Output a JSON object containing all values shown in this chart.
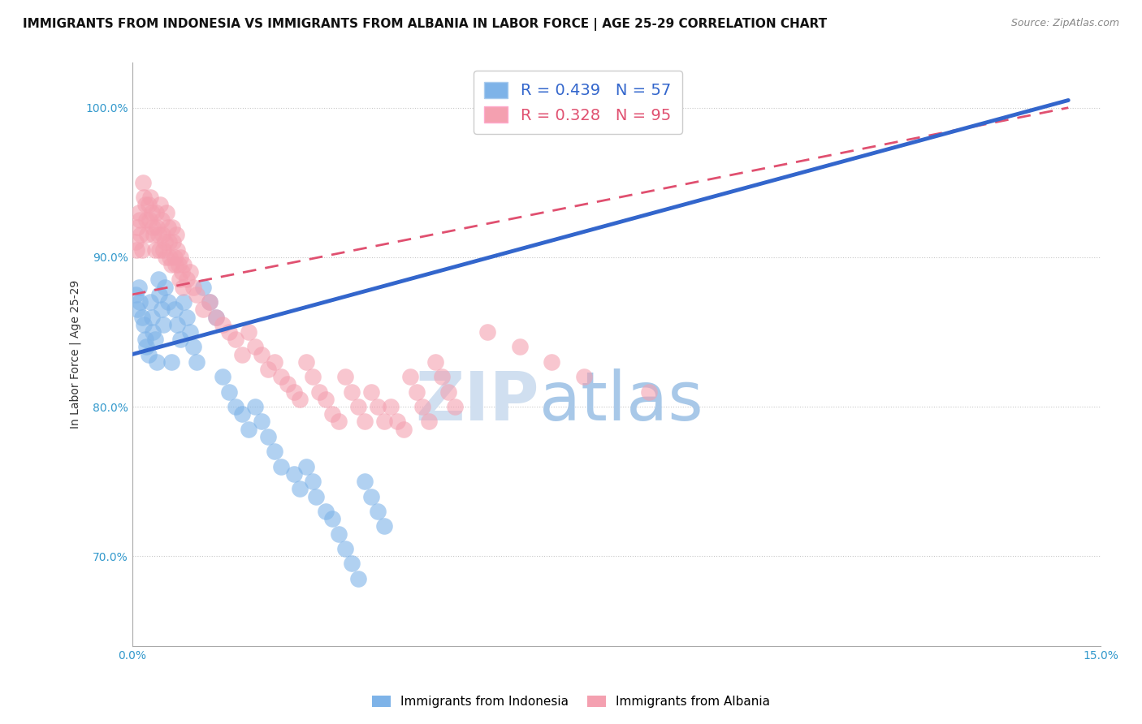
{
  "title": "IMMIGRANTS FROM INDONESIA VS IMMIGRANTS FROM ALBANIA IN LABOR FORCE | AGE 25-29 CORRELATION CHART",
  "source": "Source: ZipAtlas.com",
  "xlabel": "",
  "ylabel": "In Labor Force | Age 25-29",
  "xlim": [
    0.0,
    15.0
  ],
  "ylim": [
    64.0,
    103.0
  ],
  "xticks": [
    0.0,
    5.0,
    10.0,
    15.0
  ],
  "xticklabels": [
    "0.0%",
    "",
    "",
    "15.0%"
  ],
  "yticks": [
    70.0,
    80.0,
    90.0,
    100.0
  ],
  "yticklabels": [
    "70.0%",
    "80.0%",
    "90.0%",
    "100.0%"
  ],
  "legend_indonesia": "Immigrants from Indonesia",
  "legend_albania": "Immigrants from Albania",
  "R_indonesia": 0.439,
  "N_indonesia": 57,
  "R_albania": 0.328,
  "N_albania": 95,
  "color_indonesia": "#7EB3E8",
  "color_albania": "#F4A0B0",
  "color_trendline_indonesia": "#3366CC",
  "color_trendline_albania": "#E05070",
  "watermark_zip": "ZIP",
  "watermark_atlas": "atlas",
  "watermark_color_zip": "#C8D8F0",
  "watermark_color_atlas": "#A0C8F0",
  "background_color": "#FFFFFF",
  "title_fontsize": 11,
  "axis_label_fontsize": 10,
  "tick_fontsize": 10,
  "indonesia_x": [
    0.05,
    0.08,
    0.1,
    0.12,
    0.15,
    0.18,
    0.2,
    0.22,
    0.25,
    0.28,
    0.3,
    0.32,
    0.35,
    0.38,
    0.4,
    0.42,
    0.45,
    0.48,
    0.5,
    0.55,
    0.6,
    0.65,
    0.7,
    0.75,
    0.8,
    0.85,
    0.9,
    0.95,
    1.0,
    1.1,
    1.2,
    1.3,
    1.4,
    1.5,
    1.6,
    1.7,
    1.8,
    1.9,
    2.0,
    2.1,
    2.2,
    2.3,
    2.5,
    2.6,
    2.7,
    2.8,
    2.85,
    3.0,
    3.1,
    3.2,
    3.3,
    3.4,
    3.5,
    3.6,
    3.7,
    3.8,
    3.9
  ],
  "indonesia_y": [
    87.5,
    86.5,
    88.0,
    87.0,
    86.0,
    85.5,
    84.5,
    84.0,
    83.5,
    87.0,
    86.0,
    85.0,
    84.5,
    83.0,
    88.5,
    87.5,
    86.5,
    85.5,
    88.0,
    87.0,
    83.0,
    86.5,
    85.5,
    84.5,
    87.0,
    86.0,
    85.0,
    84.0,
    83.0,
    88.0,
    87.0,
    86.0,
    82.0,
    81.0,
    80.0,
    79.5,
    78.5,
    80.0,
    79.0,
    78.0,
    77.0,
    76.0,
    75.5,
    74.5,
    76.0,
    75.0,
    74.0,
    73.0,
    72.5,
    71.5,
    70.5,
    69.5,
    68.5,
    75.0,
    74.0,
    73.0,
    72.0
  ],
  "albania_x": [
    0.05,
    0.07,
    0.08,
    0.1,
    0.12,
    0.13,
    0.15,
    0.17,
    0.18,
    0.2,
    0.22,
    0.23,
    0.25,
    0.27,
    0.28,
    0.3,
    0.32,
    0.33,
    0.35,
    0.37,
    0.38,
    0.4,
    0.42,
    0.43,
    0.45,
    0.47,
    0.48,
    0.5,
    0.52,
    0.53,
    0.55,
    0.57,
    0.58,
    0.6,
    0.62,
    0.63,
    0.65,
    0.67,
    0.68,
    0.7,
    0.72,
    0.73,
    0.75,
    0.77,
    0.78,
    0.8,
    0.85,
    0.9,
    0.95,
    1.0,
    1.1,
    1.2,
    1.3,
    1.4,
    1.5,
    1.6,
    1.7,
    1.8,
    1.9,
    2.0,
    2.1,
    2.2,
    2.3,
    2.4,
    2.5,
    2.6,
    2.7,
    2.8,
    2.9,
    3.0,
    3.1,
    3.2,
    3.3,
    3.4,
    3.5,
    3.6,
    3.7,
    3.8,
    3.9,
    4.0,
    4.1,
    4.2,
    4.3,
    4.4,
    4.5,
    4.6,
    4.7,
    4.8,
    4.9,
    5.0,
    5.5,
    6.0,
    6.5,
    7.0,
    8.0
  ],
  "albania_y": [
    91.0,
    90.5,
    92.0,
    93.0,
    92.5,
    91.5,
    90.5,
    95.0,
    94.0,
    93.5,
    92.5,
    91.5,
    93.5,
    92.5,
    94.0,
    93.0,
    92.0,
    91.5,
    90.5,
    93.0,
    92.0,
    91.5,
    90.5,
    93.5,
    92.5,
    91.5,
    90.5,
    91.0,
    90.0,
    93.0,
    92.0,
    91.0,
    90.0,
    89.5,
    92.0,
    91.0,
    90.0,
    89.5,
    91.5,
    90.5,
    89.5,
    88.5,
    90.0,
    89.0,
    88.0,
    89.5,
    88.5,
    89.0,
    88.0,
    87.5,
    86.5,
    87.0,
    86.0,
    85.5,
    85.0,
    84.5,
    83.5,
    85.0,
    84.0,
    83.5,
    82.5,
    83.0,
    82.0,
    81.5,
    81.0,
    80.5,
    83.0,
    82.0,
    81.0,
    80.5,
    79.5,
    79.0,
    82.0,
    81.0,
    80.0,
    79.0,
    81.0,
    80.0,
    79.0,
    80.0,
    79.0,
    78.5,
    82.0,
    81.0,
    80.0,
    79.0,
    83.0,
    82.0,
    81.0,
    80.0,
    85.0,
    84.0,
    83.0,
    82.0,
    81.0
  ],
  "trend_ind_x0": 0.0,
  "trend_ind_y0": 83.5,
  "trend_ind_x1": 14.5,
  "trend_ind_y1": 100.5,
  "trend_alb_x0": 0.0,
  "trend_alb_y0": 87.5,
  "trend_alb_x1": 14.5,
  "trend_alb_y1": 100.0
}
